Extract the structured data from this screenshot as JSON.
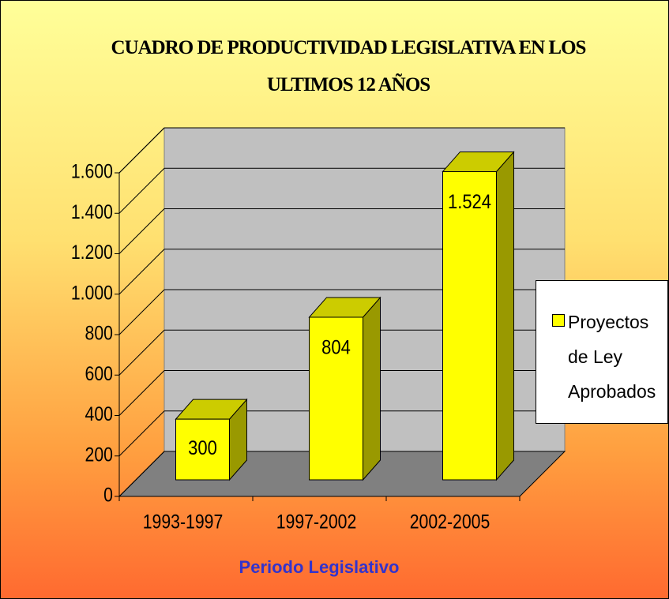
{
  "chart_data": {
    "type": "bar3d",
    "title": "CUADRO DE PRODUCTIVIDAD LEGISLATIVA EN LOS ULTIMOS 12 AÑOS",
    "xlabel": "Periodo Legislativo",
    "categories": [
      "1993-1997",
      "1997-2002",
      "2002-2005"
    ],
    "series": [
      {
        "name": "Proyectos de Ley Aprobados",
        "color": "#ffff00",
        "values": [
          300,
          804,
          1524
        ],
        "value_labels": [
          "300",
          "804",
          "1.524"
        ]
      }
    ],
    "ylim": [
      0,
      1600
    ],
    "yticks": [
      0,
      200,
      400,
      600,
      800,
      {
        "value": 1000,
        "label": "1.000"
      },
      {
        "value": 1200,
        "label": "1.200"
      },
      {
        "value": 1400,
        "label": "1.400"
      },
      {
        "value": 1600,
        "label": "1.600"
      }
    ],
    "grid": true,
    "legend": "right"
  }
}
